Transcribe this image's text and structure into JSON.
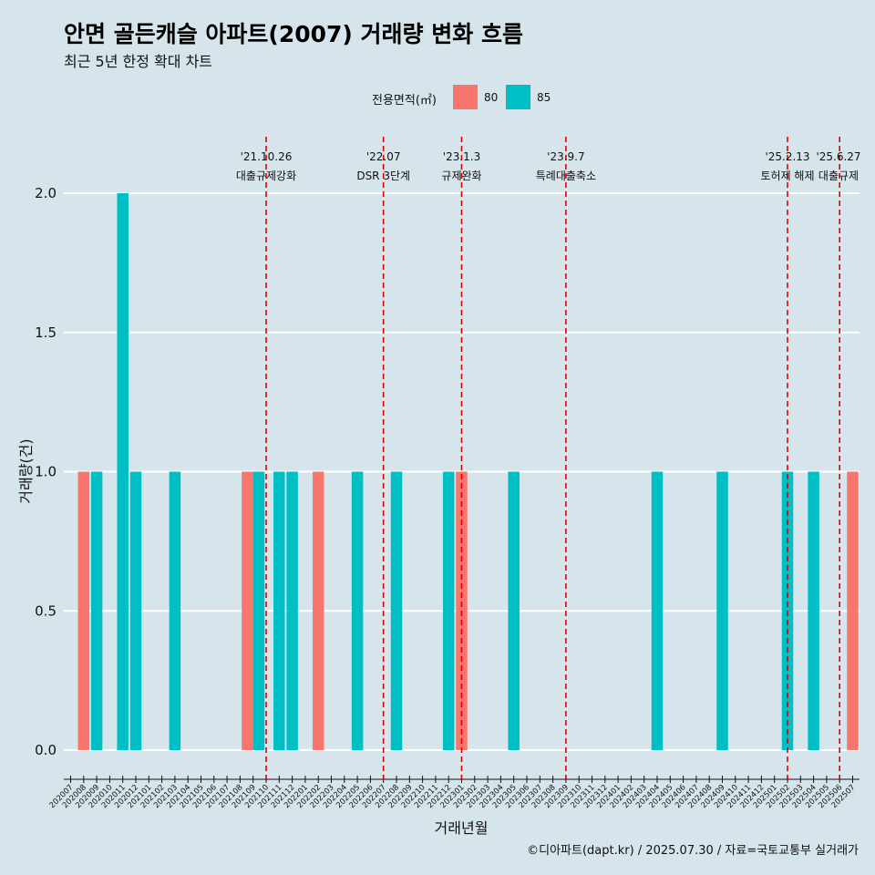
{
  "title": "안면 골든캐슬 아파트(2007) 거래량 변화 흐름",
  "subtitle": "최근 5년 한정 확대 차트",
  "caption": "©디아파트(dapt.kr) / 2025.07.30 / 자료=국토교통부 실거래가",
  "colors": {
    "80": "#F8766D",
    "85": "#00BFC4",
    "background": "#d6e4eb",
    "event_line": "#e00000"
  },
  "chart_data": {
    "type": "bar",
    "xlabel": "거래년월",
    "ylabel": "거래량(건)",
    "ylim": [
      0,
      2.0
    ],
    "yticks": [
      "0.0",
      "0.5",
      "1.0",
      "1.5",
      "2.0"
    ],
    "legend_title": "전용면적(㎡)",
    "legend_position": "top",
    "grid": true,
    "categories": [
      "202007",
      "202008",
      "202009",
      "202010",
      "202011",
      "202012",
      "202101",
      "202102",
      "202103",
      "202104",
      "202105",
      "202106",
      "202107",
      "202108",
      "202109",
      "202110",
      "202111",
      "202112",
      "202201",
      "202202",
      "202203",
      "202204",
      "202205",
      "202206",
      "202207",
      "202208",
      "202209",
      "202210",
      "202211",
      "202212",
      "202301",
      "202302",
      "202303",
      "202304",
      "202305",
      "202306",
      "202307",
      "202308",
      "202309",
      "202310",
      "202311",
      "202312",
      "202401",
      "202402",
      "202403",
      "202404",
      "202405",
      "202406",
      "202407",
      "202408",
      "202409",
      "202410",
      "202411",
      "202412",
      "202501",
      "202502",
      "202503",
      "202504",
      "202505",
      "202506",
      "202507"
    ],
    "series": [
      {
        "name": "80",
        "bars": [
          {
            "x": "202008",
            "y": 1
          },
          {
            "x": "202109",
            "y": 1
          },
          {
            "x": "202202",
            "y": 1
          },
          {
            "x": "202301",
            "y": 1
          },
          {
            "x": "202507",
            "y": 1
          }
        ]
      },
      {
        "name": "85",
        "bars": [
          {
            "x": "202009",
            "y": 1
          },
          {
            "x": "202011",
            "y": 2
          },
          {
            "x": "202012",
            "y": 1
          },
          {
            "x": "202103",
            "y": 1
          },
          {
            "x": "202109",
            "y": 1
          },
          {
            "x": "202111",
            "y": 1
          },
          {
            "x": "202112",
            "y": 1
          },
          {
            "x": "202205",
            "y": 1
          },
          {
            "x": "202208",
            "y": 1
          },
          {
            "x": "202212",
            "y": 1
          },
          {
            "x": "202305",
            "y": 1
          },
          {
            "x": "202404",
            "y": 1
          },
          {
            "x": "202409",
            "y": 1
          },
          {
            "x": "202502",
            "y": 1
          },
          {
            "x": "202504",
            "y": 1
          }
        ]
      }
    ],
    "events": [
      {
        "x": "202110",
        "date": "'21.10.26",
        "label": "대출규제강화"
      },
      {
        "x": "202207",
        "date": "'22.07",
        "label": "DSR 3단계"
      },
      {
        "x": "202301",
        "date": "'23.1.3",
        "label": "규제완화"
      },
      {
        "x": "202309",
        "date": "'23.9.7",
        "label": "특례대출축소"
      },
      {
        "x": "202502",
        "date": "'25.2.13",
        "label": "토허제 해제"
      },
      {
        "x": "202506",
        "date": "'25.6.27",
        "label": "대출규제"
      }
    ]
  }
}
